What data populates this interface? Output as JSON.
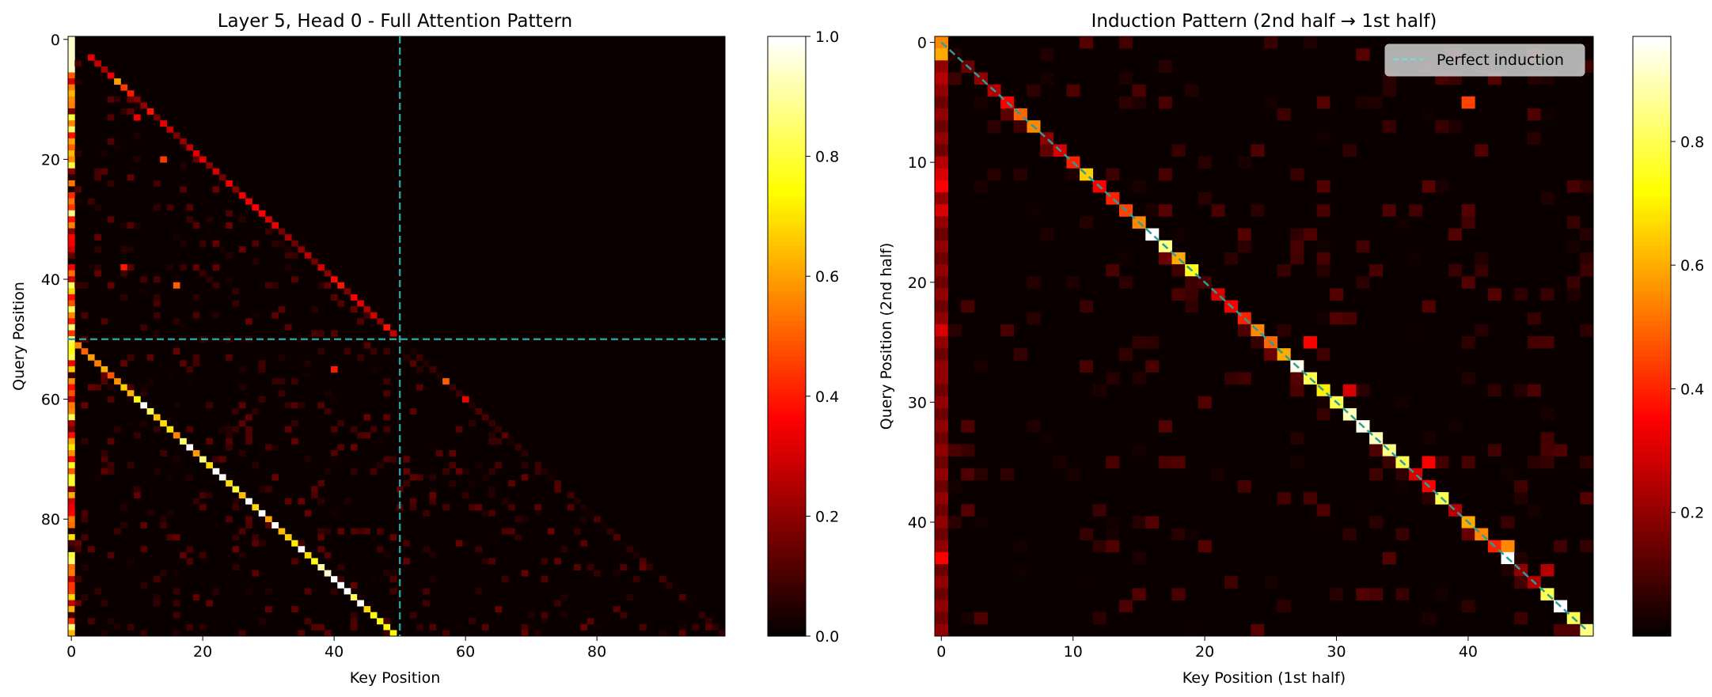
{
  "colorscale": [
    "#000000",
    "#ff0000",
    "#ffff00",
    "#ffffff"
  ],
  "accent_line_color": "#2a9d9d",
  "legend_line_color": "#7fd6d6",
  "chart_data": [
    {
      "type": "heatmap",
      "title": "Layer 5, Head 0 - Full Attention Pattern",
      "xlabel": "Key Position",
      "ylabel": "Query Position",
      "n": 100,
      "xticks": [
        0,
        20,
        40,
        60,
        80
      ],
      "yticks": [
        0,
        20,
        40,
        60,
        80
      ],
      "colorbar": {
        "min": 0.0,
        "max": 1.0,
        "ticks": [
          "0.0",
          "0.2",
          "0.4",
          "0.6",
          "0.8",
          "1.0"
        ],
        "tick_values": [
          0,
          0.2,
          0.4,
          0.6,
          0.8,
          1.0
        ]
      },
      "reference_lines": {
        "vertical_x": 50,
        "horizontal_y": 50,
        "style": "dashed"
      },
      "pattern": {
        "first_key_column_mean": 0.45,
        "diagonal_offset_below_midpoint": 50,
        "diagonal_rows": [
          51,
          99
        ],
        "diagonal_mean": 0.8,
        "sparse_background_max": 0.15
      },
      "highlights": [
        {
          "q": 7,
          "k": 7,
          "v": 0.6
        },
        {
          "q": 8,
          "k": 8,
          "v": 0.45
        },
        {
          "q": 9,
          "k": 9,
          "v": 0.4
        },
        {
          "q": 13,
          "k": 10,
          "v": 0.35
        },
        {
          "q": 20,
          "k": 14,
          "v": 0.45
        },
        {
          "q": 38,
          "k": 8,
          "v": 0.4
        },
        {
          "q": 41,
          "k": 16,
          "v": 0.5
        },
        {
          "q": 55,
          "k": 40,
          "v": 0.4
        },
        {
          "q": 57,
          "k": 57,
          "v": 0.5
        },
        {
          "q": 60,
          "k": 60,
          "v": 0.35
        },
        {
          "q": 27,
          "k": 27,
          "v": 0.35
        }
      ]
    },
    {
      "type": "heatmap",
      "title": "Induction Pattern (2nd half → 1st half)",
      "xlabel": "Key Position (1st half)",
      "ylabel": "Query Position (2nd half)",
      "n": 50,
      "xticks": [
        0,
        10,
        20,
        30,
        40
      ],
      "yticks": [
        0,
        10,
        20,
        30,
        40
      ],
      "colorbar": {
        "min": 0.0,
        "max": 0.97,
        "ticks": [
          "0.2",
          "0.4",
          "0.6",
          "0.8"
        ],
        "tick_values": [
          0.2,
          0.4,
          0.6,
          0.8
        ]
      },
      "legend": {
        "label": "Perfect induction",
        "position": "top-right",
        "style": "dashed"
      },
      "diagonal_values": [
        0.55,
        0.05,
        0.15,
        0.2,
        0.25,
        0.35,
        0.5,
        0.55,
        0.2,
        0.3,
        0.4,
        0.65,
        0.35,
        0.4,
        0.45,
        0.55,
        0.97,
        0.85,
        0.6,
        0.75,
        0.1,
        0.3,
        0.35,
        0.4,
        0.55,
        0.5,
        0.6,
        0.95,
        0.8,
        0.7,
        0.8,
        0.9,
        0.95,
        0.9,
        0.85,
        0.8,
        0.3,
        0.35,
        0.8,
        0.25,
        0.6,
        0.55,
        0.4,
        0.97,
        0.2,
        0.25,
        0.8,
        0.97,
        0.8,
        0.85
      ],
      "first_key_column_values": [
        0.55,
        0.6,
        0.2,
        0.25,
        0.2,
        0.15,
        0.2,
        0.15,
        0.2,
        0.15,
        0.25,
        0.3,
        0.35,
        0.2,
        0.3,
        0.2,
        0.15,
        0.2,
        0.15,
        0.2,
        0.15,
        0.2,
        0.15,
        0.2,
        0.3,
        0.2,
        0.15,
        0.2,
        0.2,
        0.15,
        0.2,
        0.15,
        0.2,
        0.15,
        0.2,
        0.15,
        0.2,
        0.15,
        0.2,
        0.15,
        0.2,
        0.15,
        0.2,
        0.35,
        0.15,
        0.2,
        0.15,
        0.2,
        0.15,
        0.2
      ],
      "highlights": [
        {
          "q": 5,
          "k": 40,
          "v": 0.45
        },
        {
          "q": 25,
          "k": 28,
          "v": 0.35
        },
        {
          "q": 29,
          "k": 31,
          "v": 0.3
        },
        {
          "q": 35,
          "k": 37,
          "v": 0.35
        },
        {
          "q": 42,
          "k": 43,
          "v": 0.55
        },
        {
          "q": 44,
          "k": 46,
          "v": 0.25
        }
      ]
    }
  ]
}
